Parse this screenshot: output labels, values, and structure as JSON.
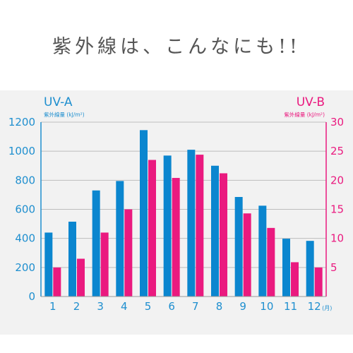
{
  "headline": "紫外線は、こんなにも!!",
  "colors": {
    "uva": "#0b86cf",
    "uvb": "#ea1a7f",
    "grid": "#bdbdbd",
    "panel": "#f2f2f2"
  },
  "chart_data": {
    "type": "bar",
    "categories": [
      "1",
      "2",
      "3",
      "4",
      "5",
      "6",
      "7",
      "8",
      "9",
      "10",
      "11",
      "12"
    ],
    "x_unit": "(月)",
    "series": [
      {
        "name": "UV-A",
        "unit_label": "紫外線量 (kJ/m²)",
        "axis": "left",
        "values": [
          440,
          515,
          730,
          795,
          1145,
          970,
          1010,
          900,
          685,
          625,
          398,
          383
        ]
      },
      {
        "name": "UV-B",
        "unit_label": "紫外線量 (kJ/m²)",
        "axis": "right",
        "values": [
          5,
          6.5,
          11,
          15,
          23.5,
          20.4,
          24.4,
          21.2,
          14.3,
          11.8,
          5.9,
          5
        ]
      }
    ],
    "left_axis": {
      "min": 0,
      "max": 1200,
      "ticks": [
        "0",
        "200",
        "400",
        "600",
        "800",
        "1000",
        "1200"
      ]
    },
    "right_axis": {
      "min": 0,
      "max": 30,
      "ticks": [
        "5",
        "10",
        "15",
        "20",
        "25",
        "30"
      ]
    },
    "grid": true
  }
}
